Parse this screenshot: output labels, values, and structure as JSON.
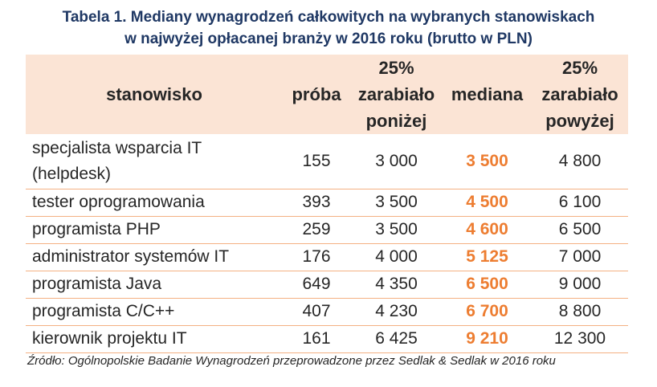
{
  "title": {
    "line1": "Tabela 1. Mediany wynagrodzeń całkowitych na wybranych stanowiskach",
    "line2": "w najwyżej opłacanej branży w 2016 roku (brutto w PLN)"
  },
  "colors": {
    "title": "#1f3864",
    "header_bg": "#fbe4d5",
    "median": "#ed7d31",
    "row_border": "#f4b183"
  },
  "headers": {
    "stanowisko": "stanowisko",
    "proba": "próba",
    "p25_l1": "25%",
    "p25_l2": "zarabiało",
    "p25_l3": "poniżej",
    "mediana": "mediana",
    "p75_l1": "25%",
    "p75_l2": "zarabiało",
    "p75_l3": "powyżej"
  },
  "rows": [
    {
      "name1": "specjalista wsparcia IT",
      "name2": "(helpdesk)",
      "proba": "155",
      "low": "3 000",
      "median": "3 500",
      "high": "4 800"
    },
    {
      "name1": "tester oprogramowania",
      "proba": "393",
      "low": "3 500",
      "median": "4 500",
      "high": "6 100"
    },
    {
      "name1": "programista PHP",
      "proba": "259",
      "low": "3 500",
      "median": "4 600",
      "high": "6 500"
    },
    {
      "name1": "administrator systemów IT",
      "proba": "176",
      "low": "4 000",
      "median": "5 125",
      "high": "7 000"
    },
    {
      "name1": "programista Java",
      "proba": "649",
      "low": "4 350",
      "median": "6 500",
      "high": "9 000"
    },
    {
      "name1": "programista C/C++",
      "proba": "407",
      "low": "4 230",
      "median": "6 700",
      "high": "8 800"
    },
    {
      "name1": "kierownik projektu IT",
      "proba": "161",
      "low": "6 425",
      "median": "9 210",
      "high": "12 300"
    }
  ],
  "source": "Źródło: Ogólnopolskie Badanie Wynagrodzeń przeprowadzone przez Sedlak & Sedlak w 2016 roku"
}
